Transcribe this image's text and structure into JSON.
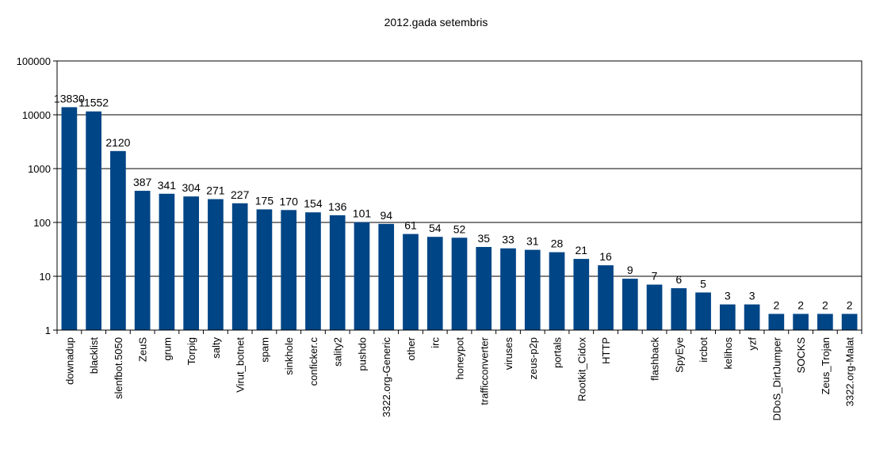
{
  "chart_data": {
    "type": "bar",
    "title": "2012.gada setembris",
    "xlabel": "",
    "ylabel": "",
    "yscale": "log",
    "ylim": [
      1,
      100000
    ],
    "yticks": [
      "1",
      "10",
      "100",
      "1000",
      "10000",
      "100000"
    ],
    "grid": true,
    "bar_color": "#004586",
    "categories": [
      "downadup",
      "blacklist",
      "slenfbot.5050",
      "ZeuS",
      "grum",
      "Torpig",
      "salty",
      "Virut_botnet",
      "spam",
      "sinkhole",
      "conficker.c",
      "sality2",
      "pushdo",
      "3322.org-Generic",
      "other",
      "irc",
      "honeypot",
      "trafficconverter",
      "viruses",
      "zeus-p2p",
      "portals",
      "Rootkit_Cidox",
      "HTTP",
      "",
      "flashback",
      "SpyEye",
      "ircbot",
      "kelihos",
      "yzf",
      "DDoS_DirtJumper",
      "SOCKS",
      "Zeus_Trojan",
      "3322.org-Malat"
    ],
    "values": [
      13830,
      11552,
      2120,
      387,
      341,
      304,
      271,
      227,
      175,
      170,
      154,
      136,
      101,
      94,
      61,
      54,
      52,
      35,
      33,
      31,
      28,
      21,
      16,
      9,
      7,
      6,
      5,
      3,
      3,
      2,
      2,
      2,
      2
    ],
    "data_labels": [
      "13830",
      "11552",
      "2120",
      "387",
      "341",
      "304",
      "271",
      "227",
      "175",
      "170",
      "154",
      "136",
      "101",
      "94",
      "61",
      "54",
      "52",
      "35",
      "33",
      "31",
      "28",
      "21",
      "16",
      "9",
      "7",
      "6",
      "5",
      "3",
      "3",
      "2",
      "2",
      "2",
      "2"
    ]
  }
}
